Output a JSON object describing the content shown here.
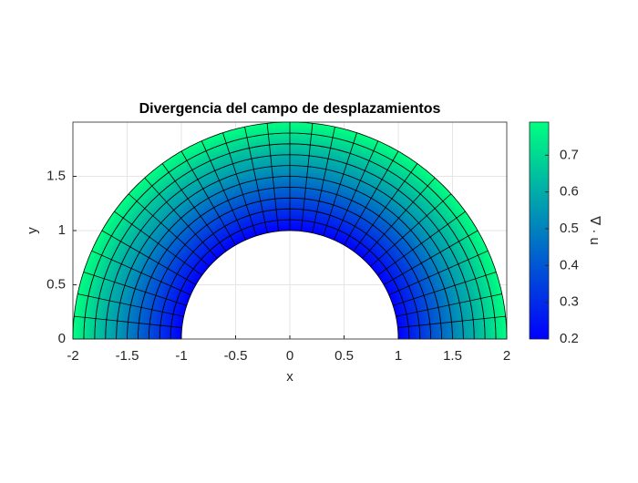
{
  "chart_data": {
    "type": "mesh",
    "title": "Divergencia del campo de desplazamientos",
    "xlabel": "x",
    "ylabel": "y",
    "colorbar_label": "∇ · u",
    "radii": [
      1,
      1.1,
      1.2,
      1.3,
      1.4,
      1.5,
      1.6,
      1.7,
      1.8,
      1.9,
      2
    ],
    "values": [
      0.2,
      0.26,
      0.32,
      0.38,
      0.44,
      0.5,
      0.56,
      0.61,
      0.67,
      0.73,
      0.79
    ],
    "colormap": "winter",
    "xlim": [
      -2,
      2
    ],
    "ylim": [
      0,
      2
    ],
    "xticks": [
      -2,
      -1.5,
      -1,
      -0.5,
      0,
      0.5,
      1,
      1.5,
      2
    ],
    "yticks": [
      0,
      0.5,
      1,
      1.5
    ],
    "clim": [
      0.2,
      0.79
    ],
    "cticks": [
      0.2,
      0.3,
      0.4,
      0.5,
      0.6,
      0.7
    ],
    "grid": true
  }
}
